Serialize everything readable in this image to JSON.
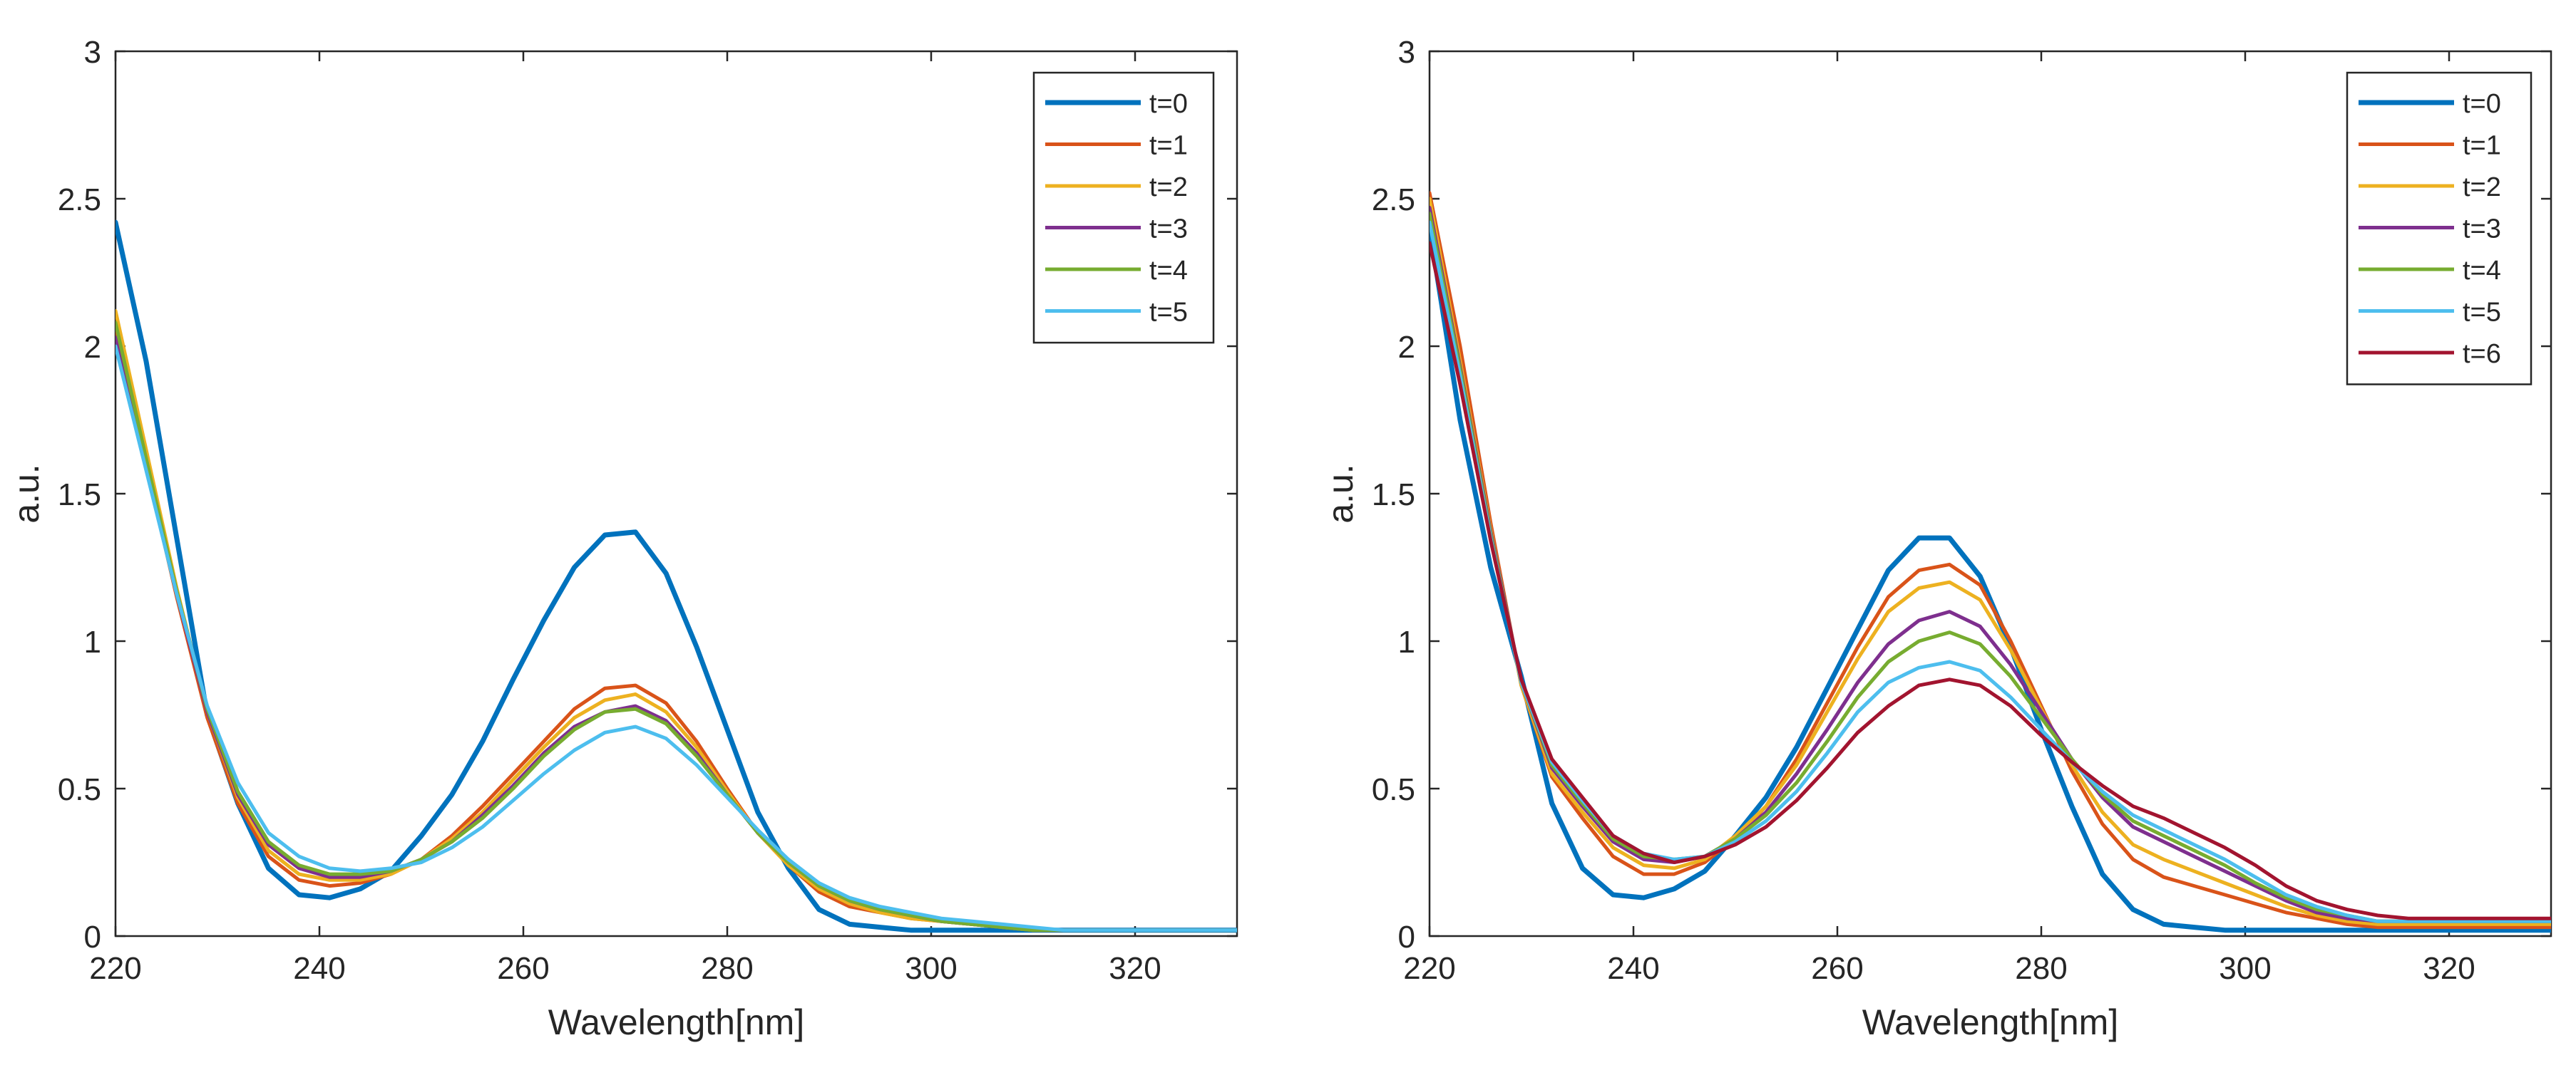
{
  "chart_data": [
    {
      "type": "line",
      "title": "",
      "xlabel": "Wavelength[nm]",
      "ylabel": "a.u.",
      "xlim": [
        220,
        330
      ],
      "ylim": [
        0,
        3
      ],
      "xticks": [
        220,
        240,
        260,
        280,
        300,
        320
      ],
      "yticks": [
        0,
        0.5,
        1,
        1.5,
        2,
        2.5,
        3
      ],
      "ytick_labels": [
        "0",
        "0.5",
        "1",
        "1.5",
        "2",
        "2.5",
        "3"
      ],
      "grid": false,
      "legend_position": "top-right",
      "x": [
        220,
        223,
        226,
        229,
        232,
        235,
        238,
        241,
        244,
        247,
        250,
        253,
        256,
        259,
        262,
        265,
        268,
        271,
        274,
        277,
        280,
        283,
        286,
        289,
        292,
        295,
        298,
        301,
        304,
        307,
        310,
        313,
        316,
        319,
        322,
        325,
        330
      ],
      "series": [
        {
          "name": "t=0",
          "color": "#0072BD",
          "width": 7,
          "values": [
            2.42,
            1.95,
            1.35,
            0.75,
            0.45,
            0.23,
            0.14,
            0.13,
            0.16,
            0.22,
            0.34,
            0.48,
            0.66,
            0.87,
            1.07,
            1.25,
            1.36,
            1.37,
            1.23,
            0.98,
            0.7,
            0.42,
            0.23,
            0.09,
            0.04,
            0.03,
            0.02,
            0.02,
            0.02,
            0.02,
            0.02,
            0.02,
            0.02,
            0.02,
            0.02,
            0.02,
            0.02
          ]
        },
        {
          "name": "t=1",
          "color": "#D95319",
          "width": 5,
          "values": [
            2.05,
            1.6,
            1.15,
            0.74,
            0.45,
            0.27,
            0.19,
            0.17,
            0.18,
            0.21,
            0.26,
            0.34,
            0.44,
            0.55,
            0.66,
            0.77,
            0.84,
            0.85,
            0.79,
            0.66,
            0.5,
            0.35,
            0.24,
            0.15,
            0.1,
            0.08,
            0.06,
            0.05,
            0.04,
            0.03,
            0.02,
            0.02,
            0.02,
            0.02,
            0.02,
            0.02,
            0.02
          ]
        },
        {
          "name": "t=2",
          "color": "#EDB120",
          "width": 5,
          "values": [
            2.12,
            1.65,
            1.18,
            0.76,
            0.47,
            0.29,
            0.21,
            0.19,
            0.19,
            0.21,
            0.26,
            0.33,
            0.42,
            0.53,
            0.64,
            0.74,
            0.8,
            0.82,
            0.76,
            0.64,
            0.49,
            0.35,
            0.24,
            0.16,
            0.11,
            0.08,
            0.06,
            0.05,
            0.04,
            0.03,
            0.02,
            0.02,
            0.02,
            0.02,
            0.02,
            0.02,
            0.02
          ]
        },
        {
          "name": "t=3",
          "color": "#7E2F8E",
          "width": 5,
          "values": [
            2.03,
            1.6,
            1.16,
            0.76,
            0.48,
            0.31,
            0.23,
            0.2,
            0.2,
            0.22,
            0.26,
            0.32,
            0.41,
            0.51,
            0.62,
            0.71,
            0.76,
            0.78,
            0.73,
            0.62,
            0.48,
            0.35,
            0.25,
            0.17,
            0.12,
            0.09,
            0.07,
            0.05,
            0.04,
            0.03,
            0.02,
            0.02,
            0.02,
            0.02,
            0.02,
            0.02,
            0.02
          ]
        },
        {
          "name": "t=4",
          "color": "#77AC30",
          "width": 5,
          "values": [
            2.08,
            1.62,
            1.17,
            0.77,
            0.49,
            0.32,
            0.24,
            0.21,
            0.21,
            0.22,
            0.26,
            0.32,
            0.4,
            0.5,
            0.61,
            0.7,
            0.76,
            0.77,
            0.72,
            0.61,
            0.48,
            0.35,
            0.25,
            0.17,
            0.12,
            0.09,
            0.07,
            0.05,
            0.04,
            0.03,
            0.02,
            0.02,
            0.02,
            0.02,
            0.02,
            0.02,
            0.02
          ]
        },
        {
          "name": "t=5",
          "color": "#4DBEEE",
          "width": 5,
          "values": [
            2.0,
            1.58,
            1.16,
            0.78,
            0.52,
            0.35,
            0.27,
            0.23,
            0.22,
            0.23,
            0.25,
            0.3,
            0.37,
            0.46,
            0.55,
            0.63,
            0.69,
            0.71,
            0.67,
            0.58,
            0.47,
            0.36,
            0.26,
            0.18,
            0.13,
            0.1,
            0.08,
            0.06,
            0.05,
            0.04,
            0.03,
            0.02,
            0.02,
            0.02,
            0.02,
            0.02,
            0.02
          ]
        }
      ]
    },
    {
      "type": "line",
      "title": "",
      "xlabel": "Wavelength[nm]",
      "ylabel": "a.u.",
      "xlim": [
        220,
        330
      ],
      "ylim": [
        0,
        3
      ],
      "xticks": [
        220,
        240,
        260,
        280,
        300,
        320
      ],
      "yticks": [
        0,
        0.5,
        1,
        1.5,
        2,
        2.5,
        3
      ],
      "ytick_labels": [
        "0",
        "0.5",
        "1",
        "1.5",
        "2",
        "2.5",
        "3"
      ],
      "grid": false,
      "legend_position": "top-right",
      "x": [
        220,
        223,
        226,
        229,
        232,
        235,
        238,
        241,
        244,
        247,
        250,
        253,
        256,
        259,
        262,
        265,
        268,
        271,
        274,
        277,
        280,
        283,
        286,
        289,
        292,
        295,
        298,
        301,
        304,
        307,
        310,
        313,
        316,
        319,
        322,
        325,
        330
      ],
      "series": [
        {
          "name": "t=0",
          "color": "#0072BD",
          "width": 7,
          "values": [
            2.4,
            1.75,
            1.25,
            0.88,
            0.45,
            0.23,
            0.14,
            0.13,
            0.16,
            0.22,
            0.34,
            0.47,
            0.64,
            0.84,
            1.04,
            1.24,
            1.35,
            1.35,
            1.22,
            0.98,
            0.7,
            0.44,
            0.21,
            0.09,
            0.04,
            0.03,
            0.02,
            0.02,
            0.02,
            0.02,
            0.02,
            0.02,
            0.02,
            0.02,
            0.02,
            0.02,
            0.02
          ]
        },
        {
          "name": "t=1",
          "color": "#D95319",
          "width": 5,
          "values": [
            2.52,
            2.0,
            1.4,
            0.85,
            0.54,
            0.4,
            0.27,
            0.21,
            0.21,
            0.25,
            0.33,
            0.44,
            0.6,
            0.79,
            0.98,
            1.15,
            1.24,
            1.26,
            1.19,
            1.0,
            0.78,
            0.56,
            0.38,
            0.26,
            0.2,
            0.17,
            0.14,
            0.11,
            0.08,
            0.06,
            0.04,
            0.03,
            0.03,
            0.03,
            0.03,
            0.03,
            0.03
          ]
        },
        {
          "name": "t=2",
          "color": "#EDB120",
          "width": 5,
          "values": [
            2.5,
            1.95,
            1.38,
            0.85,
            0.55,
            0.42,
            0.3,
            0.24,
            0.23,
            0.26,
            0.34,
            0.44,
            0.58,
            0.76,
            0.94,
            1.1,
            1.18,
            1.2,
            1.14,
            0.97,
            0.77,
            0.58,
            0.42,
            0.31,
            0.26,
            0.22,
            0.18,
            0.14,
            0.1,
            0.07,
            0.05,
            0.04,
            0.04,
            0.04,
            0.04,
            0.04,
            0.04
          ]
        },
        {
          "name": "t=3",
          "color": "#7E2F8E",
          "width": 5,
          "values": [
            2.47,
            1.93,
            1.37,
            0.86,
            0.57,
            0.44,
            0.32,
            0.26,
            0.25,
            0.27,
            0.33,
            0.42,
            0.55,
            0.7,
            0.86,
            0.99,
            1.07,
            1.1,
            1.05,
            0.92,
            0.76,
            0.6,
            0.47,
            0.37,
            0.32,
            0.27,
            0.22,
            0.17,
            0.12,
            0.08,
            0.06,
            0.05,
            0.05,
            0.05,
            0.05,
            0.05,
            0.05
          ]
        },
        {
          "name": "t=4",
          "color": "#77AC30",
          "width": 5,
          "values": [
            2.45,
            1.92,
            1.36,
            0.86,
            0.58,
            0.45,
            0.33,
            0.27,
            0.26,
            0.27,
            0.33,
            0.41,
            0.52,
            0.66,
            0.81,
            0.93,
            1.0,
            1.03,
            0.99,
            0.88,
            0.74,
            0.6,
            0.48,
            0.39,
            0.34,
            0.29,
            0.24,
            0.18,
            0.13,
            0.09,
            0.07,
            0.05,
            0.05,
            0.05,
            0.05,
            0.05,
            0.05
          ]
        },
        {
          "name": "t=5",
          "color": "#4DBEEE",
          "width": 5,
          "values": [
            2.42,
            1.9,
            1.35,
            0.86,
            0.59,
            0.46,
            0.34,
            0.28,
            0.26,
            0.27,
            0.32,
            0.39,
            0.49,
            0.62,
            0.76,
            0.86,
            0.91,
            0.93,
            0.9,
            0.81,
            0.7,
            0.59,
            0.49,
            0.41,
            0.36,
            0.31,
            0.26,
            0.2,
            0.14,
            0.1,
            0.07,
            0.05,
            0.05,
            0.05,
            0.05,
            0.05,
            0.05
          ]
        },
        {
          "name": "t=6",
          "color": "#A2142F",
          "width": 5,
          "values": [
            2.35,
            1.87,
            1.34,
            0.87,
            0.6,
            0.47,
            0.34,
            0.28,
            0.25,
            0.27,
            0.31,
            0.37,
            0.46,
            0.57,
            0.69,
            0.78,
            0.85,
            0.87,
            0.85,
            0.78,
            0.68,
            0.59,
            0.51,
            0.44,
            0.4,
            0.35,
            0.3,
            0.24,
            0.17,
            0.12,
            0.09,
            0.07,
            0.06,
            0.06,
            0.06,
            0.06,
            0.06
          ]
        }
      ]
    }
  ]
}
